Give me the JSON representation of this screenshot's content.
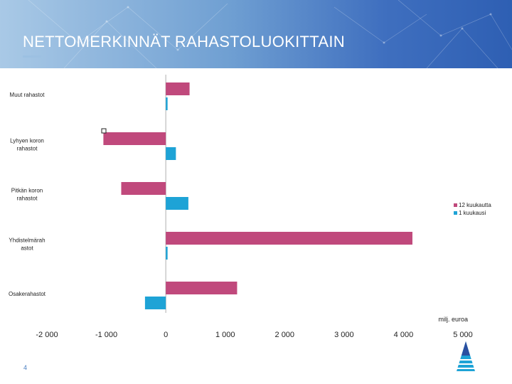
{
  "slide": {
    "title": "NETTOMERKINNÄT RAHASTOLUOKITTAIN",
    "page_number": "4",
    "unit_label": "milj. euroa"
  },
  "colors": {
    "series_12m": "#c0497c",
    "series_1m": "#1ea3d6",
    "axis": "#b0b0b0",
    "text": "#222222"
  },
  "legend": {
    "items": [
      {
        "label": "12 kuukautta"
      },
      {
        "label": "1 kuukausi"
      }
    ]
  },
  "chart_data": {
    "type": "bar",
    "orientation": "horizontal",
    "categories": [
      "Muut rahastot",
      "Lyhyen koron rahastot",
      "Pitkän koron rahastot",
      "Yhdistelmärahastot",
      "Osakerahastot"
    ],
    "category_labels": [
      [
        "Muut rahastot"
      ],
      [
        "Lyhyen koron",
        "rahastot"
      ],
      [
        "Pitkän koron",
        "rahastot"
      ],
      [
        "Yhdistelmärah",
        "astot"
      ],
      [
        "Osakerahastot"
      ]
    ],
    "series": [
      {
        "name": "12 kuukautta",
        "values": [
          400,
          -1050,
          -750,
          4150,
          1200
        ]
      },
      {
        "name": "1 kuukausi",
        "values": [
          30,
          170,
          380,
          30,
          -350
        ]
      }
    ],
    "xlim": [
      -2000,
      5000
    ],
    "xticks": [
      -2000,
      -1000,
      0,
      1000,
      2000,
      3000,
      4000,
      5000
    ],
    "xtick_labels": [
      "-2 000",
      "-1 000",
      "0",
      "1 000",
      "2 000",
      "3 000",
      "4 000",
      "5 000"
    ],
    "xlabel": "milj. euroa",
    "ylabel": "",
    "title": "",
    "legend_position": "right",
    "grid": false
  }
}
